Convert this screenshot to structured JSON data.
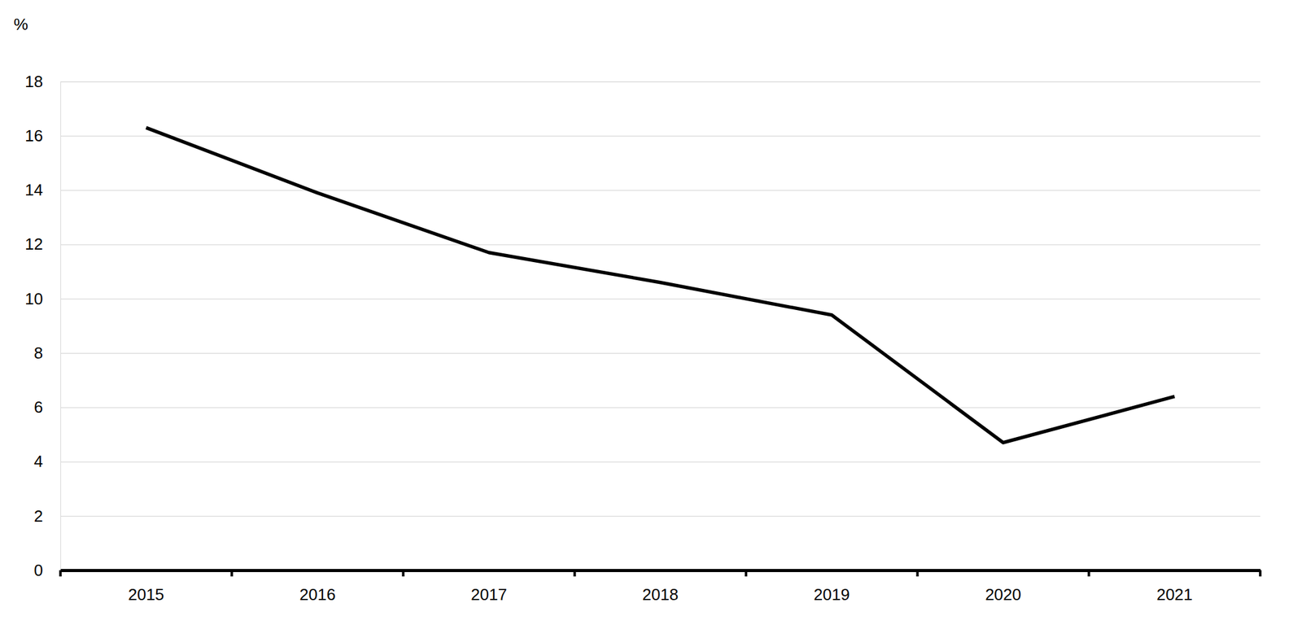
{
  "chart_data": {
    "type": "line",
    "y_label": "%",
    "categories": [
      "2015",
      "2016",
      "2017",
      "2018",
      "2019",
      "2020",
      "2021"
    ],
    "values": [
      16.3,
      13.9,
      11.7,
      10.6,
      9.4,
      4.7,
      6.4
    ],
    "color": "#000000",
    "ylim": [
      0,
      18
    ],
    "yticks": [
      0,
      2,
      4,
      6,
      8,
      10,
      12,
      14,
      16,
      18
    ],
    "grid": true
  }
}
